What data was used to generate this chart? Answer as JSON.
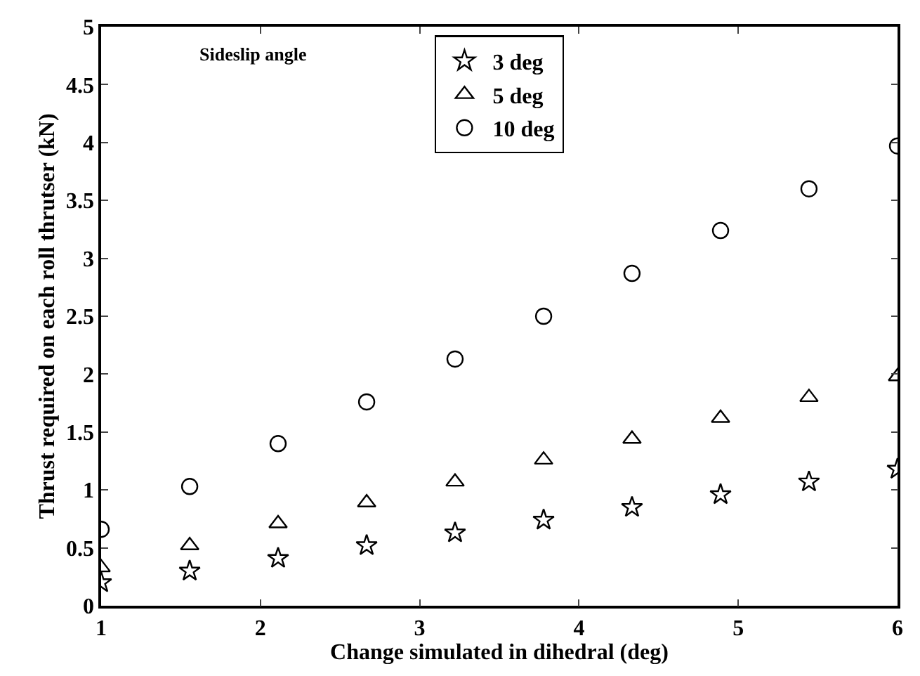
{
  "chart_data": {
    "type": "scatter",
    "xlabel": "Change simulated in dihedral (deg)",
    "ylabel": "Thrust required on each roll thrutser (kN)",
    "annotations": [
      "Sideslip angle"
    ],
    "x": [
      1,
      1.556,
      2.111,
      2.667,
      3.222,
      3.778,
      4.333,
      4.889,
      5.444,
      6
    ],
    "series": [
      {
        "name": "3 deg",
        "color": "#000000",
        "marker": "star",
        "values": [
          0.2,
          0.3,
          0.41,
          0.52,
          0.63,
          0.74,
          0.85,
          0.96,
          1.07,
          1.18
        ]
      },
      {
        "name": "5 deg",
        "color": "#000000",
        "marker": "triangle",
        "values": [
          0.33,
          0.52,
          0.71,
          0.89,
          1.07,
          1.26,
          1.44,
          1.62,
          1.8,
          1.98
        ]
      },
      {
        "name": "10 deg",
        "color": "#000000",
        "marker": "circle",
        "values": [
          0.66,
          1.03,
          1.4,
          1.76,
          2.13,
          2.5,
          2.87,
          3.24,
          3.6,
          3.97
        ]
      }
    ],
    "xlim": [
      1,
      6
    ],
    "xticks": [
      1,
      2,
      3,
      4,
      5,
      6
    ],
    "ylim": [
      0,
      5
    ],
    "yticks": [
      0,
      0.5,
      1,
      1.5,
      2,
      2.5,
      3,
      3.5,
      4,
      4.5,
      5
    ],
    "legend": "top"
  }
}
